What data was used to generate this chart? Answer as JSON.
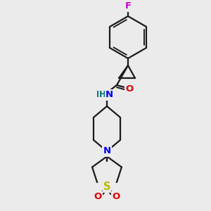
{
  "bg_color": "#ebebeb",
  "bond_color": "#1a1a1a",
  "bond_width": 1.6,
  "atom_colors": {
    "F": "#cc00cc",
    "N": "#0000ee",
    "O": "#dd0000",
    "S": "#bbbb00",
    "H": "#007070",
    "C": "#1a1a1a"
  },
  "font_size": 9.5,
  "fig_size": [
    3.0,
    3.0
  ],
  "dpi": 100
}
